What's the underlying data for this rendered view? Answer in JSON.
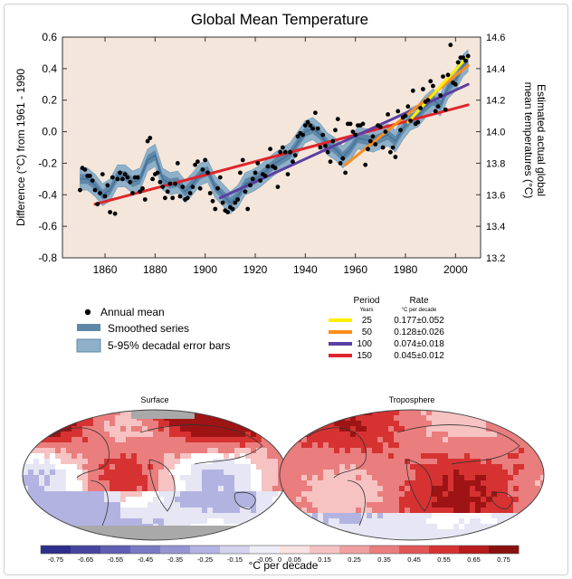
{
  "chart_data": [
    {
      "type": "scatter",
      "title": "Global Mean Temperature",
      "ylabel": "Difference (°C) from 1961 - 1990",
      "ylabel_right": "Estimated actual global mean temperatures (°C)",
      "xlim": [
        1843,
        2010
      ],
      "ylim": [
        -0.8,
        0.6
      ],
      "ylim_right": [
        13.2,
        14.6
      ],
      "x_ticks": [
        "1860",
        "1880",
        "1900",
        "1920",
        "1940",
        "1960",
        "1980",
        "2000"
      ],
      "y_ticks": [
        "0.6",
        "0.4",
        "0.2",
        "0.0",
        "-0.2",
        "-0.4",
        "-0.6",
        "-0.8"
      ],
      "y_ticks_right": [
        "14.6",
        "14.4",
        "14.2",
        "14.0",
        "13.8",
        "13.6",
        "13.4",
        "13.2"
      ],
      "background": "#f4e6da",
      "annual_mean": {
        "name": "Annual mean",
        "x": [
          1850,
          1851,
          1852,
          1853,
          1854,
          1855,
          1856,
          1857,
          1858,
          1859,
          1860,
          1861,
          1862,
          1863,
          1864,
          1865,
          1866,
          1867,
          1868,
          1869,
          1870,
          1871,
          1872,
          1873,
          1874,
          1875,
          1876,
          1877,
          1878,
          1879,
          1880,
          1881,
          1882,
          1883,
          1884,
          1885,
          1886,
          1887,
          1888,
          1889,
          1890,
          1891,
          1892,
          1893,
          1894,
          1895,
          1896,
          1897,
          1898,
          1899,
          1900,
          1901,
          1902,
          1903,
          1904,
          1905,
          1906,
          1907,
          1908,
          1909,
          1910,
          1911,
          1912,
          1913,
          1914,
          1915,
          1916,
          1917,
          1918,
          1919,
          1920,
          1921,
          1922,
          1923,
          1924,
          1925,
          1926,
          1927,
          1928,
          1929,
          1930,
          1931,
          1932,
          1933,
          1934,
          1935,
          1936,
          1937,
          1938,
          1939,
          1940,
          1941,
          1942,
          1943,
          1944,
          1945,
          1946,
          1947,
          1948,
          1949,
          1950,
          1951,
          1952,
          1953,
          1954,
          1955,
          1956,
          1957,
          1958,
          1959,
          1960,
          1961,
          1962,
          1963,
          1964,
          1965,
          1966,
          1967,
          1968,
          1969,
          1970,
          1971,
          1972,
          1973,
          1974,
          1975,
          1976,
          1977,
          1978,
          1979,
          1980,
          1981,
          1982,
          1983,
          1984,
          1985,
          1986,
          1987,
          1988,
          1989,
          1990,
          1991,
          1992,
          1993,
          1994,
          1995,
          1996,
          1997,
          1998,
          1999,
          2000,
          2001,
          2002,
          2003,
          2004,
          2005
        ],
        "y": [
          -0.37,
          -0.23,
          -0.24,
          -0.28,
          -0.28,
          -0.31,
          -0.37,
          -0.46,
          -0.39,
          -0.27,
          -0.41,
          -0.34,
          -0.51,
          -0.29,
          -0.52,
          -0.3,
          -0.26,
          -0.3,
          -0.27,
          -0.29,
          -0.32,
          -0.39,
          -0.29,
          -0.29,
          -0.38,
          -0.36,
          -0.43,
          -0.06,
          -0.04,
          -0.3,
          -0.27,
          -0.26,
          -0.32,
          -0.35,
          -0.42,
          -0.38,
          -0.33,
          -0.42,
          -0.33,
          -0.2,
          -0.41,
          -0.35,
          -0.43,
          -0.42,
          -0.39,
          -0.35,
          -0.21,
          -0.19,
          -0.36,
          -0.24,
          -0.18,
          -0.26,
          -0.39,
          -0.44,
          -0.49,
          -0.36,
          -0.29,
          -0.45,
          -0.5,
          -0.51,
          -0.48,
          -0.49,
          -0.45,
          -0.43,
          -0.26,
          -0.18,
          -0.38,
          -0.49,
          -0.34,
          -0.3,
          -0.26,
          -0.2,
          -0.31,
          -0.27,
          -0.28,
          -0.22,
          -0.11,
          -0.22,
          -0.23,
          -0.35,
          -0.13,
          -0.1,
          -0.13,
          -0.27,
          -0.13,
          -0.19,
          -0.15,
          -0.03,
          -0.01,
          -0.02,
          0.04,
          0.06,
          0.04,
          0.02,
          0.12,
          0.02,
          -0.1,
          -0.02,
          -0.09,
          -0.13,
          -0.19,
          -0.06,
          0.01,
          0.08,
          -0.2,
          -0.17,
          -0.26,
          0.05,
          0.05,
          0.0,
          -0.02,
          0.04,
          0.04,
          0.05,
          -0.21,
          -0.11,
          -0.06,
          -0.03,
          -0.08,
          0.04,
          0.03,
          -0.1,
          0.0,
          0.11,
          -0.13,
          -0.1,
          -0.16,
          0.13,
          0.01,
          0.09,
          0.1,
          0.16,
          0.07,
          0.26,
          0.05,
          0.06,
          0.15,
          0.27,
          0.19,
          0.2,
          0.32,
          0.29,
          0.13,
          0.16,
          0.23,
          0.35,
          0.14,
          0.36,
          0.55,
          0.31,
          0.3,
          0.44,
          0.47,
          0.47,
          0.45,
          0.48
        ]
      },
      "smoothed_series": {
        "name": "Smoothed series",
        "x": [
          1850,
          1853,
          1856,
          1859,
          1862,
          1865,
          1868,
          1871,
          1874,
          1877,
          1880,
          1883,
          1886,
          1889,
          1892,
          1895,
          1898,
          1901,
          1904,
          1907,
          1910,
          1913,
          1916,
          1919,
          1922,
          1925,
          1928,
          1931,
          1934,
          1937,
          1940,
          1943,
          1946,
          1949,
          1952,
          1955,
          1958,
          1961,
          1964,
          1967,
          1970,
          1973,
          1976,
          1979,
          1982,
          1985,
          1988,
          1991,
          1994,
          1997,
          2000,
          2003,
          2005
        ],
        "y": [
          -0.3,
          -0.3,
          -0.34,
          -0.4,
          -0.37,
          -0.28,
          -0.28,
          -0.32,
          -0.3,
          -0.18,
          -0.15,
          -0.3,
          -0.33,
          -0.32,
          -0.38,
          -0.33,
          -0.27,
          -0.25,
          -0.35,
          -0.4,
          -0.45,
          -0.41,
          -0.33,
          -0.31,
          -0.28,
          -0.24,
          -0.2,
          -0.17,
          -0.14,
          -0.07,
          0.0,
          0.02,
          -0.02,
          -0.08,
          -0.11,
          -0.16,
          -0.11,
          -0.04,
          -0.05,
          -0.06,
          -0.04,
          -0.02,
          -0.06,
          0.02,
          0.08,
          0.1,
          0.16,
          0.2,
          0.17,
          0.28,
          0.33,
          0.42,
          0.45
        ]
      },
      "error_band_halfwidth": 0.07,
      "error_band_name": "5-95% decadal error bars",
      "trend_header": {
        "period": "Period",
        "period_unit": "Years",
        "rate": "Rate",
        "rate_unit": "°C per decade"
      },
      "trends": [
        {
          "period": "25",
          "rate": "0.177±0.052",
          "color": "#ffee00",
          "x": [
            1981,
            2005
          ],
          "y": [
            0.06,
            0.48
          ]
        },
        {
          "period": "50",
          "rate": "0.128±0.026",
          "color": "#ff8c1a",
          "x": [
            1956,
            2005
          ],
          "y": [
            -0.21,
            0.42
          ]
        },
        {
          "period": "100",
          "rate": "0.074±0.018",
          "color": "#5b3fa3",
          "x": [
            1906,
            2005
          ],
          "y": [
            -0.42,
            0.3
          ]
        },
        {
          "period": "150",
          "rate": "0.045±0.012",
          "color": "#e0242b",
          "x": [
            1856,
            2005
          ],
          "y": [
            -0.46,
            0.17
          ]
        }
      ]
    },
    {
      "type": "heatmap",
      "panels": [
        {
          "title": "Surface"
        },
        {
          "title": "Troposphere"
        }
      ],
      "colorbar": {
        "label": "°C per decade",
        "ticks": [
          "-0.75",
          "-0.65",
          "-0.55",
          "-0.45",
          "-0.35",
          "-0.25",
          "-0.15",
          "-0.05",
          "0",
          "0.05",
          "0.15",
          "0.25",
          "0.35",
          "0.45",
          "0.55",
          "0.65",
          "0.75"
        ],
        "colors": [
          "#2d2d8a",
          "#45459f",
          "#5e5eb3",
          "#7878c4",
          "#9595d4",
          "#b3b3e2",
          "#d3d3ee",
          "#eeeef8",
          "#fbe3e3",
          "#f6c2c2",
          "#f0a0a0",
          "#ea7d7d",
          "#e25656",
          "#d63232",
          "#b81c1c",
          "#8a1010"
        ]
      },
      "legend": {
        "annual_mean": "Annual mean",
        "smoothed": "Smoothed series",
        "error_bars": "5-95% decadal error bars"
      }
    }
  ],
  "colors": {
    "plot_bg": "#f4e6da",
    "band": "#6f9bb9",
    "band_inner": "#3d6e98",
    "dot": "#000000"
  }
}
